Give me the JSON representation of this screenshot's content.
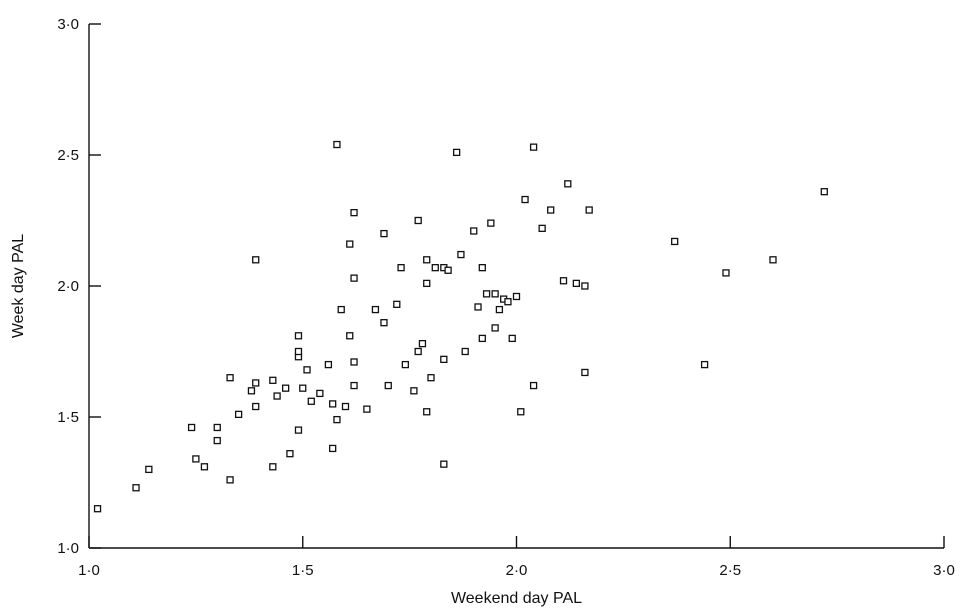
{
  "chart_data": {
    "type": "scatter",
    "xlabel": "Weekend day PAL",
    "ylabel": "Week day PAL",
    "xlim": [
      1.0,
      3.0
    ],
    "ylim": [
      1.0,
      3.0
    ],
    "x_ticks": [
      1.0,
      1.5,
      2.0,
      2.5,
      3.0
    ],
    "y_ticks": [
      1.0,
      1.5,
      2.0,
      2.5,
      3.0
    ],
    "x_tick_labels": [
      "1·0",
      "1·5",
      "2·0",
      "2·5",
      "3·0"
    ],
    "y_tick_labels": [
      "1·0",
      "1·5",
      "2·0",
      "2·5",
      "3·0"
    ],
    "grid": false,
    "marker": "open-square",
    "points": [
      {
        "x": 1.02,
        "y": 1.15
      },
      {
        "x": 1.11,
        "y": 1.23
      },
      {
        "x": 1.14,
        "y": 1.3
      },
      {
        "x": 1.24,
        "y": 1.46
      },
      {
        "x": 1.25,
        "y": 1.34
      },
      {
        "x": 1.27,
        "y": 1.31
      },
      {
        "x": 1.3,
        "y": 1.41
      },
      {
        "x": 1.3,
        "y": 1.46
      },
      {
        "x": 1.33,
        "y": 1.26
      },
      {
        "x": 1.33,
        "y": 1.65
      },
      {
        "x": 1.35,
        "y": 1.51
      },
      {
        "x": 1.38,
        "y": 1.6
      },
      {
        "x": 1.39,
        "y": 1.63
      },
      {
        "x": 1.39,
        "y": 1.54
      },
      {
        "x": 1.39,
        "y": 2.1
      },
      {
        "x": 1.43,
        "y": 1.64
      },
      {
        "x": 1.43,
        "y": 1.31
      },
      {
        "x": 1.44,
        "y": 1.58
      },
      {
        "x": 1.46,
        "y": 1.61
      },
      {
        "x": 1.47,
        "y": 1.36
      },
      {
        "x": 1.49,
        "y": 1.45
      },
      {
        "x": 1.49,
        "y": 1.73
      },
      {
        "x": 1.49,
        "y": 1.75
      },
      {
        "x": 1.49,
        "y": 1.81
      },
      {
        "x": 1.5,
        "y": 1.61
      },
      {
        "x": 1.51,
        "y": 1.68
      },
      {
        "x": 1.52,
        "y": 1.56
      },
      {
        "x": 1.54,
        "y": 1.59
      },
      {
        "x": 1.56,
        "y": 1.7
      },
      {
        "x": 1.57,
        "y": 1.55
      },
      {
        "x": 1.57,
        "y": 1.38
      },
      {
        "x": 1.58,
        "y": 2.54
      },
      {
        "x": 1.58,
        "y": 1.49
      },
      {
        "x": 1.59,
        "y": 1.91
      },
      {
        "x": 1.6,
        "y": 1.54
      },
      {
        "x": 1.61,
        "y": 1.81
      },
      {
        "x": 1.61,
        "y": 2.16
      },
      {
        "x": 1.62,
        "y": 1.71
      },
      {
        "x": 1.62,
        "y": 2.03
      },
      {
        "x": 1.62,
        "y": 2.28
      },
      {
        "x": 1.62,
        "y": 1.62
      },
      {
        "x": 1.65,
        "y": 1.53
      },
      {
        "x": 1.67,
        "y": 1.91
      },
      {
        "x": 1.69,
        "y": 1.86
      },
      {
        "x": 1.69,
        "y": 2.2
      },
      {
        "x": 1.7,
        "y": 1.62
      },
      {
        "x": 1.72,
        "y": 1.93
      },
      {
        "x": 1.73,
        "y": 2.07
      },
      {
        "x": 1.74,
        "y": 1.7
      },
      {
        "x": 1.76,
        "y": 1.6
      },
      {
        "x": 1.77,
        "y": 1.75
      },
      {
        "x": 1.77,
        "y": 2.25
      },
      {
        "x": 1.78,
        "y": 1.78
      },
      {
        "x": 1.79,
        "y": 1.52
      },
      {
        "x": 1.79,
        "y": 2.01
      },
      {
        "x": 1.79,
        "y": 2.1
      },
      {
        "x": 1.8,
        "y": 1.65
      },
      {
        "x": 1.81,
        "y": 2.07
      },
      {
        "x": 1.83,
        "y": 2.07
      },
      {
        "x": 1.83,
        "y": 1.72
      },
      {
        "x": 1.83,
        "y": 1.32
      },
      {
        "x": 1.84,
        "y": 2.06
      },
      {
        "x": 1.86,
        "y": 2.51
      },
      {
        "x": 1.87,
        "y": 2.12
      },
      {
        "x": 1.88,
        "y": 1.75
      },
      {
        "x": 1.9,
        "y": 2.21
      },
      {
        "x": 1.91,
        "y": 1.92
      },
      {
        "x": 1.92,
        "y": 2.07
      },
      {
        "x": 1.92,
        "y": 1.8
      },
      {
        "x": 1.93,
        "y": 1.97
      },
      {
        "x": 1.94,
        "y": 2.24
      },
      {
        "x": 1.95,
        "y": 1.84
      },
      {
        "x": 1.95,
        "y": 1.97
      },
      {
        "x": 1.96,
        "y": 1.91
      },
      {
        "x": 1.97,
        "y": 1.95
      },
      {
        "x": 1.98,
        "y": 1.94
      },
      {
        "x": 1.99,
        "y": 1.8
      },
      {
        "x": 2.0,
        "y": 1.96
      },
      {
        "x": 2.01,
        "y": 1.52
      },
      {
        "x": 2.02,
        "y": 2.33
      },
      {
        "x": 2.04,
        "y": 1.62
      },
      {
        "x": 2.04,
        "y": 2.53
      },
      {
        "x": 2.06,
        "y": 2.22
      },
      {
        "x": 2.08,
        "y": 2.29
      },
      {
        "x": 2.11,
        "y": 2.02
      },
      {
        "x": 2.12,
        "y": 2.39
      },
      {
        "x": 2.14,
        "y": 2.01
      },
      {
        "x": 2.16,
        "y": 1.67
      },
      {
        "x": 2.16,
        "y": 2.0
      },
      {
        "x": 2.17,
        "y": 2.29
      },
      {
        "x": 2.37,
        "y": 2.17
      },
      {
        "x": 2.44,
        "y": 1.7
      },
      {
        "x": 2.49,
        "y": 2.05
      },
      {
        "x": 2.6,
        "y": 2.1
      },
      {
        "x": 2.72,
        "y": 2.36
      }
    ]
  }
}
